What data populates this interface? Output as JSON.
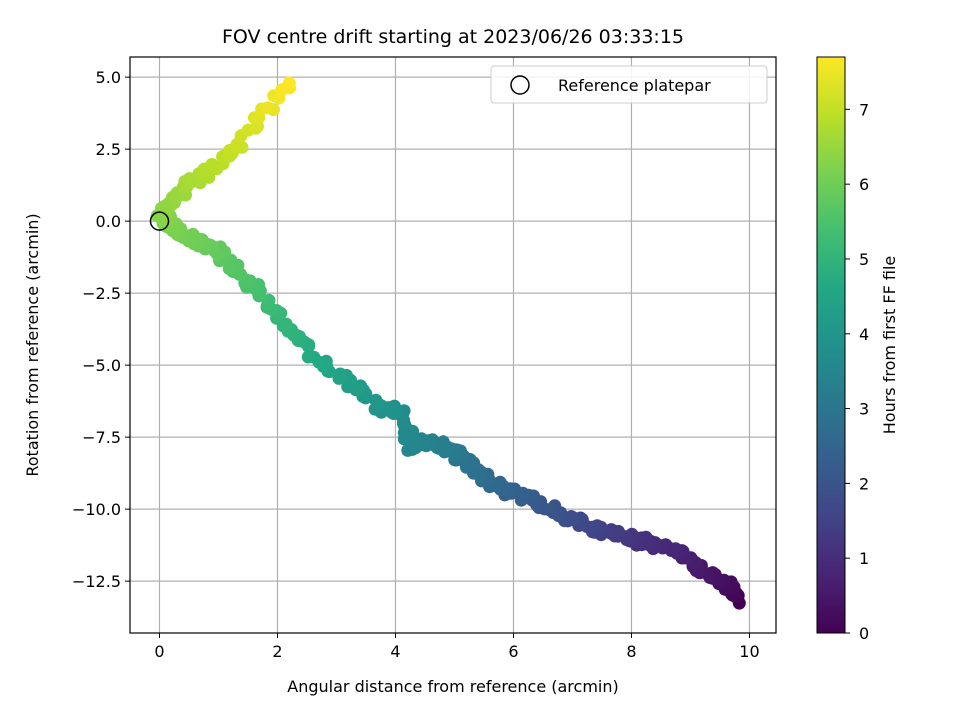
{
  "chart_data": {
    "type": "scatter",
    "title": "FOV centre drift starting at 2023/06/26 03:33:15",
    "xlabel": "Angular distance from reference (arcmin)",
    "ylabel": "Rotation from reference (arcmin)",
    "xlim": [
      -0.5,
      10.45
    ],
    "ylim": [
      -14.3,
      5.7
    ],
    "xticks": [
      0,
      2,
      4,
      6,
      8,
      10
    ],
    "xtick_labels": [
      "0",
      "2",
      "4",
      "6",
      "8",
      "10"
    ],
    "yticks": [
      5.0,
      2.5,
      0.0,
      -2.5,
      -5.0,
      -7.5,
      -10.0,
      -12.5
    ],
    "ytick_labels": [
      "5.0",
      "2.5",
      "0.0",
      "−2.5",
      "−5.0",
      "−7.5",
      "−10.0",
      "−12.5"
    ],
    "grid": true,
    "legend": {
      "placement": "top-right",
      "entries": [
        "Reference platepar"
      ]
    },
    "reference_point": {
      "x": 0,
      "y": 0
    },
    "colormap": "viridis",
    "colorbar": {
      "label": "Hours from first FF file",
      "range": [
        0,
        7.7
      ],
      "ticks": [
        0,
        1,
        2,
        3,
        4,
        5,
        6,
        7
      ],
      "tick_labels": [
        "0",
        "1",
        "2",
        "3",
        "4",
        "5",
        "6",
        "7"
      ]
    },
    "drift_path": {
      "x": [
        9.8,
        9.6,
        9.2,
        8.8,
        8.3,
        7.8,
        7.3,
        6.8,
        6.3,
        5.8,
        5.4,
        5.1,
        4.9,
        4.5,
        4.3,
        4.1,
        3.8,
        3.2,
        2.6,
        2.0,
        1.5,
        1.0,
        0.6,
        0.3,
        0.15,
        0.05,
        0.3,
        0.8,
        1.4,
        2.2
      ],
      "y": [
        -13.2,
        -12.6,
        -12.1,
        -11.5,
        -11.2,
        -10.9,
        -10.6,
        -10.2,
        -9.7,
        -9.3,
        -8.7,
        -8.2,
        -7.9,
        -7.6,
        -7.9,
        -6.7,
        -6.5,
        -5.6,
        -4.6,
        -3.3,
        -2.1,
        -1.1,
        -0.7,
        -0.4,
        0.0,
        0.2,
        0.9,
        1.7,
        2.8,
        4.8
      ],
      "t": [
        0.0,
        0.25,
        0.5,
        0.75,
        1.0,
        1.3,
        1.6,
        1.9,
        2.2,
        2.5,
        2.8,
        3.0,
        3.2,
        3.4,
        3.5,
        3.7,
        3.9,
        4.3,
        4.7,
        5.1,
        5.5,
        5.8,
        6.0,
        6.1,
        6.2,
        6.3,
        6.5,
        6.8,
        7.1,
        7.7
      ]
    }
  }
}
